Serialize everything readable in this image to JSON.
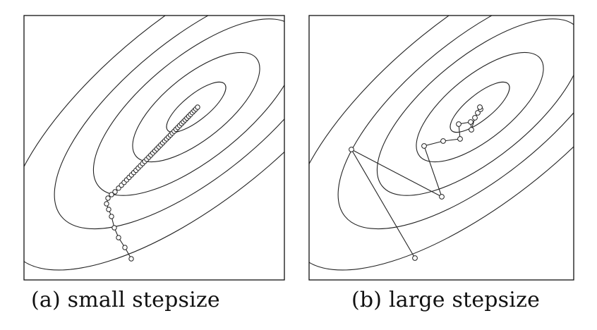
{
  "panels": [
    {
      "id": "a",
      "caption": "(a) small stepsize"
    },
    {
      "id": "b",
      "caption": "(b) large stepsize"
    }
  ],
  "colors": {
    "line": "#222222",
    "frame": "#111111",
    "background": "#ffffff"
  }
}
